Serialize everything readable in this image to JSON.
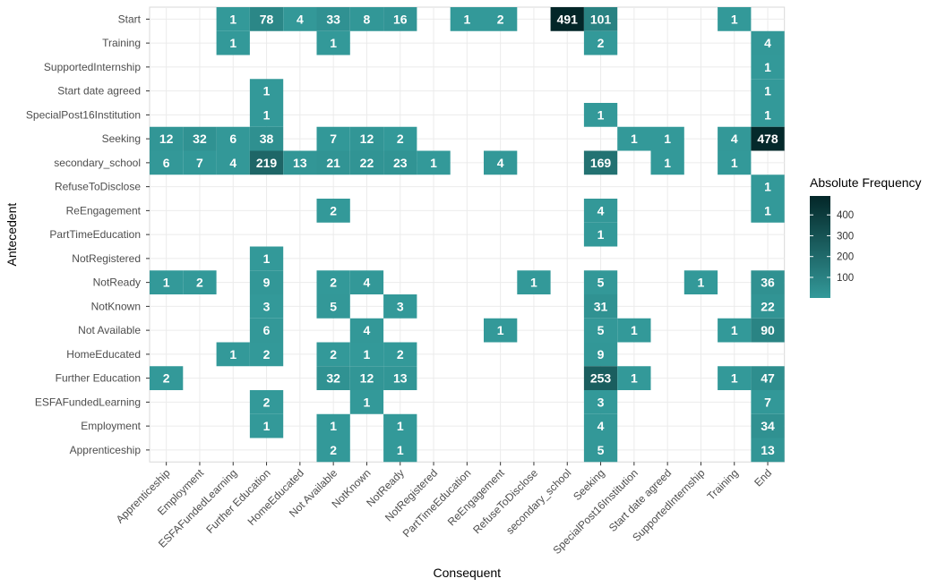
{
  "chart_data": {
    "type": "heatmap",
    "title": "",
    "xlabel": "Consequent",
    "ylabel": "Antecedent",
    "x_categories": [
      "Apprenticeship",
      "Employment",
      "ESFAFundedLearning",
      "Further Education",
      "HomeEducated",
      "Not Available",
      "NotKnown",
      "NotReady",
      "NotRegistered",
      "PartTimeEducation",
      "ReEngagement",
      "RefuseToDisclose",
      "secondary_school",
      "Seeking",
      "SpecialPost16Institution",
      "Start date agreed",
      "SupportedInternship",
      "Training",
      "End"
    ],
    "y_categories": [
      "Start",
      "Training",
      "SupportedInternship",
      "Start date agreed",
      "SpecialPost16Institution",
      "Seeking",
      "secondary_school",
      "RefuseToDisclose",
      "ReEngagement",
      "PartTimeEducation",
      "NotRegistered",
      "NotReady",
      "NotKnown",
      "Not Available",
      "HomeEducated",
      "Further Education",
      "ESFAFundedLearning",
      "Employment",
      "Apprenticeship"
    ],
    "cells": [
      [
        "Start",
        "ESFAFundedLearning",
        1
      ],
      [
        "Start",
        "Further Education",
        78
      ],
      [
        "Start",
        "HomeEducated",
        4
      ],
      [
        "Start",
        "Not Available",
        33
      ],
      [
        "Start",
        "NotKnown",
        8
      ],
      [
        "Start",
        "NotReady",
        16
      ],
      [
        "Start",
        "PartTimeEducation",
        1
      ],
      [
        "Start",
        "ReEngagement",
        2
      ],
      [
        "Start",
        "secondary_school",
        491
      ],
      [
        "Start",
        "Seeking",
        101
      ],
      [
        "Start",
        "Training",
        1
      ],
      [
        "Training",
        "ESFAFundedLearning",
        1
      ],
      [
        "Training",
        "Not Available",
        1
      ],
      [
        "Training",
        "Seeking",
        2
      ],
      [
        "Training",
        "End",
        4
      ],
      [
        "SupportedInternship",
        "End",
        1
      ],
      [
        "Start date agreed",
        "Further Education",
        1
      ],
      [
        "Start date agreed",
        "End",
        1
      ],
      [
        "SpecialPost16Institution",
        "Further Education",
        1
      ],
      [
        "SpecialPost16Institution",
        "Seeking",
        1
      ],
      [
        "SpecialPost16Institution",
        "End",
        1
      ],
      [
        "Seeking",
        "Apprenticeship",
        12
      ],
      [
        "Seeking",
        "Employment",
        32
      ],
      [
        "Seeking",
        "ESFAFundedLearning",
        6
      ],
      [
        "Seeking",
        "Further Education",
        38
      ],
      [
        "Seeking",
        "Not Available",
        7
      ],
      [
        "Seeking",
        "NotKnown",
        12
      ],
      [
        "Seeking",
        "NotReady",
        2
      ],
      [
        "Seeking",
        "SpecialPost16Institution",
        1
      ],
      [
        "Seeking",
        "Start date agreed",
        1
      ],
      [
        "Seeking",
        "Training",
        4
      ],
      [
        "Seeking",
        "End",
        478
      ],
      [
        "secondary_school",
        "Apprenticeship",
        6
      ],
      [
        "secondary_school",
        "Employment",
        7
      ],
      [
        "secondary_school",
        "ESFAFundedLearning",
        4
      ],
      [
        "secondary_school",
        "Further Education",
        219
      ],
      [
        "secondary_school",
        "HomeEducated",
        13
      ],
      [
        "secondary_school",
        "Not Available",
        21
      ],
      [
        "secondary_school",
        "NotKnown",
        22
      ],
      [
        "secondary_school",
        "NotReady",
        23
      ],
      [
        "secondary_school",
        "NotRegistered",
        1
      ],
      [
        "secondary_school",
        "ReEngagement",
        4
      ],
      [
        "secondary_school",
        "Seeking",
        169
      ],
      [
        "secondary_school",
        "Start date agreed",
        1
      ],
      [
        "secondary_school",
        "Training",
        1
      ],
      [
        "RefuseToDisclose",
        "End",
        1
      ],
      [
        "ReEngagement",
        "Not Available",
        2
      ],
      [
        "ReEngagement",
        "Seeking",
        4
      ],
      [
        "ReEngagement",
        "End",
        1
      ],
      [
        "PartTimeEducation",
        "Seeking",
        1
      ],
      [
        "NotRegistered",
        "Further Education",
        1
      ],
      [
        "NotReady",
        "Apprenticeship",
        1
      ],
      [
        "NotReady",
        "Employment",
        2
      ],
      [
        "NotReady",
        "Further Education",
        9
      ],
      [
        "NotReady",
        "Not Available",
        2
      ],
      [
        "NotReady",
        "NotKnown",
        4
      ],
      [
        "NotReady",
        "RefuseToDisclose",
        1
      ],
      [
        "NotReady",
        "Seeking",
        5
      ],
      [
        "NotReady",
        "SupportedInternship",
        1
      ],
      [
        "NotReady",
        "End",
        36
      ],
      [
        "NotKnown",
        "Further Education",
        3
      ],
      [
        "NotKnown",
        "Not Available",
        5
      ],
      [
        "NotKnown",
        "NotReady",
        3
      ],
      [
        "NotKnown",
        "Seeking",
        31
      ],
      [
        "NotKnown",
        "End",
        22
      ],
      [
        "Not Available",
        "Further Education",
        6
      ],
      [
        "Not Available",
        "NotKnown",
        4
      ],
      [
        "Not Available",
        "ReEngagement",
        1
      ],
      [
        "Not Available",
        "Seeking",
        5
      ],
      [
        "Not Available",
        "SpecialPost16Institution",
        1
      ],
      [
        "Not Available",
        "Training",
        1
      ],
      [
        "Not Available",
        "End",
        90
      ],
      [
        "HomeEducated",
        "ESFAFundedLearning",
        1
      ],
      [
        "HomeEducated",
        "Further Education",
        2
      ],
      [
        "HomeEducated",
        "Not Available",
        2
      ],
      [
        "HomeEducated",
        "NotKnown",
        1
      ],
      [
        "HomeEducated",
        "NotReady",
        2
      ],
      [
        "HomeEducated",
        "Seeking",
        9
      ],
      [
        "Further Education",
        "Apprenticeship",
        2
      ],
      [
        "Further Education",
        "Not Available",
        32
      ],
      [
        "Further Education",
        "NotKnown",
        12
      ],
      [
        "Further Education",
        "NotReady",
        13
      ],
      [
        "Further Education",
        "Seeking",
        253
      ],
      [
        "Further Education",
        "SpecialPost16Institution",
        1
      ],
      [
        "Further Education",
        "Training",
        1
      ],
      [
        "Further Education",
        "End",
        47
      ],
      [
        "ESFAFundedLearning",
        "Further Education",
        2
      ],
      [
        "ESFAFundedLearning",
        "NotKnown",
        1
      ],
      [
        "ESFAFundedLearning",
        "Seeking",
        3
      ],
      [
        "ESFAFundedLearning",
        "End",
        7
      ],
      [
        "Employment",
        "Further Education",
        1
      ],
      [
        "Employment",
        "Not Available",
        1
      ],
      [
        "Employment",
        "NotReady",
        1
      ],
      [
        "Employment",
        "Seeking",
        4
      ],
      [
        "Employment",
        "End",
        34
      ],
      [
        "Apprenticeship",
        "Not Available",
        2
      ],
      [
        "Apprenticeship",
        "NotReady",
        1
      ],
      [
        "Apprenticeship",
        "Seeking",
        5
      ],
      [
        "Apprenticeship",
        "End",
        13
      ]
    ],
    "value_range": [
      1,
      491
    ],
    "colors": {
      "low": "#339999",
      "high": "#032628"
    },
    "grid": true,
    "legend": {
      "title": "Absolute Frequency",
      "placement": "right",
      "ticks": [
        100,
        200,
        300,
        400
      ],
      "tick_labels": [
        "100",
        "200",
        "300",
        "400"
      ]
    }
  }
}
